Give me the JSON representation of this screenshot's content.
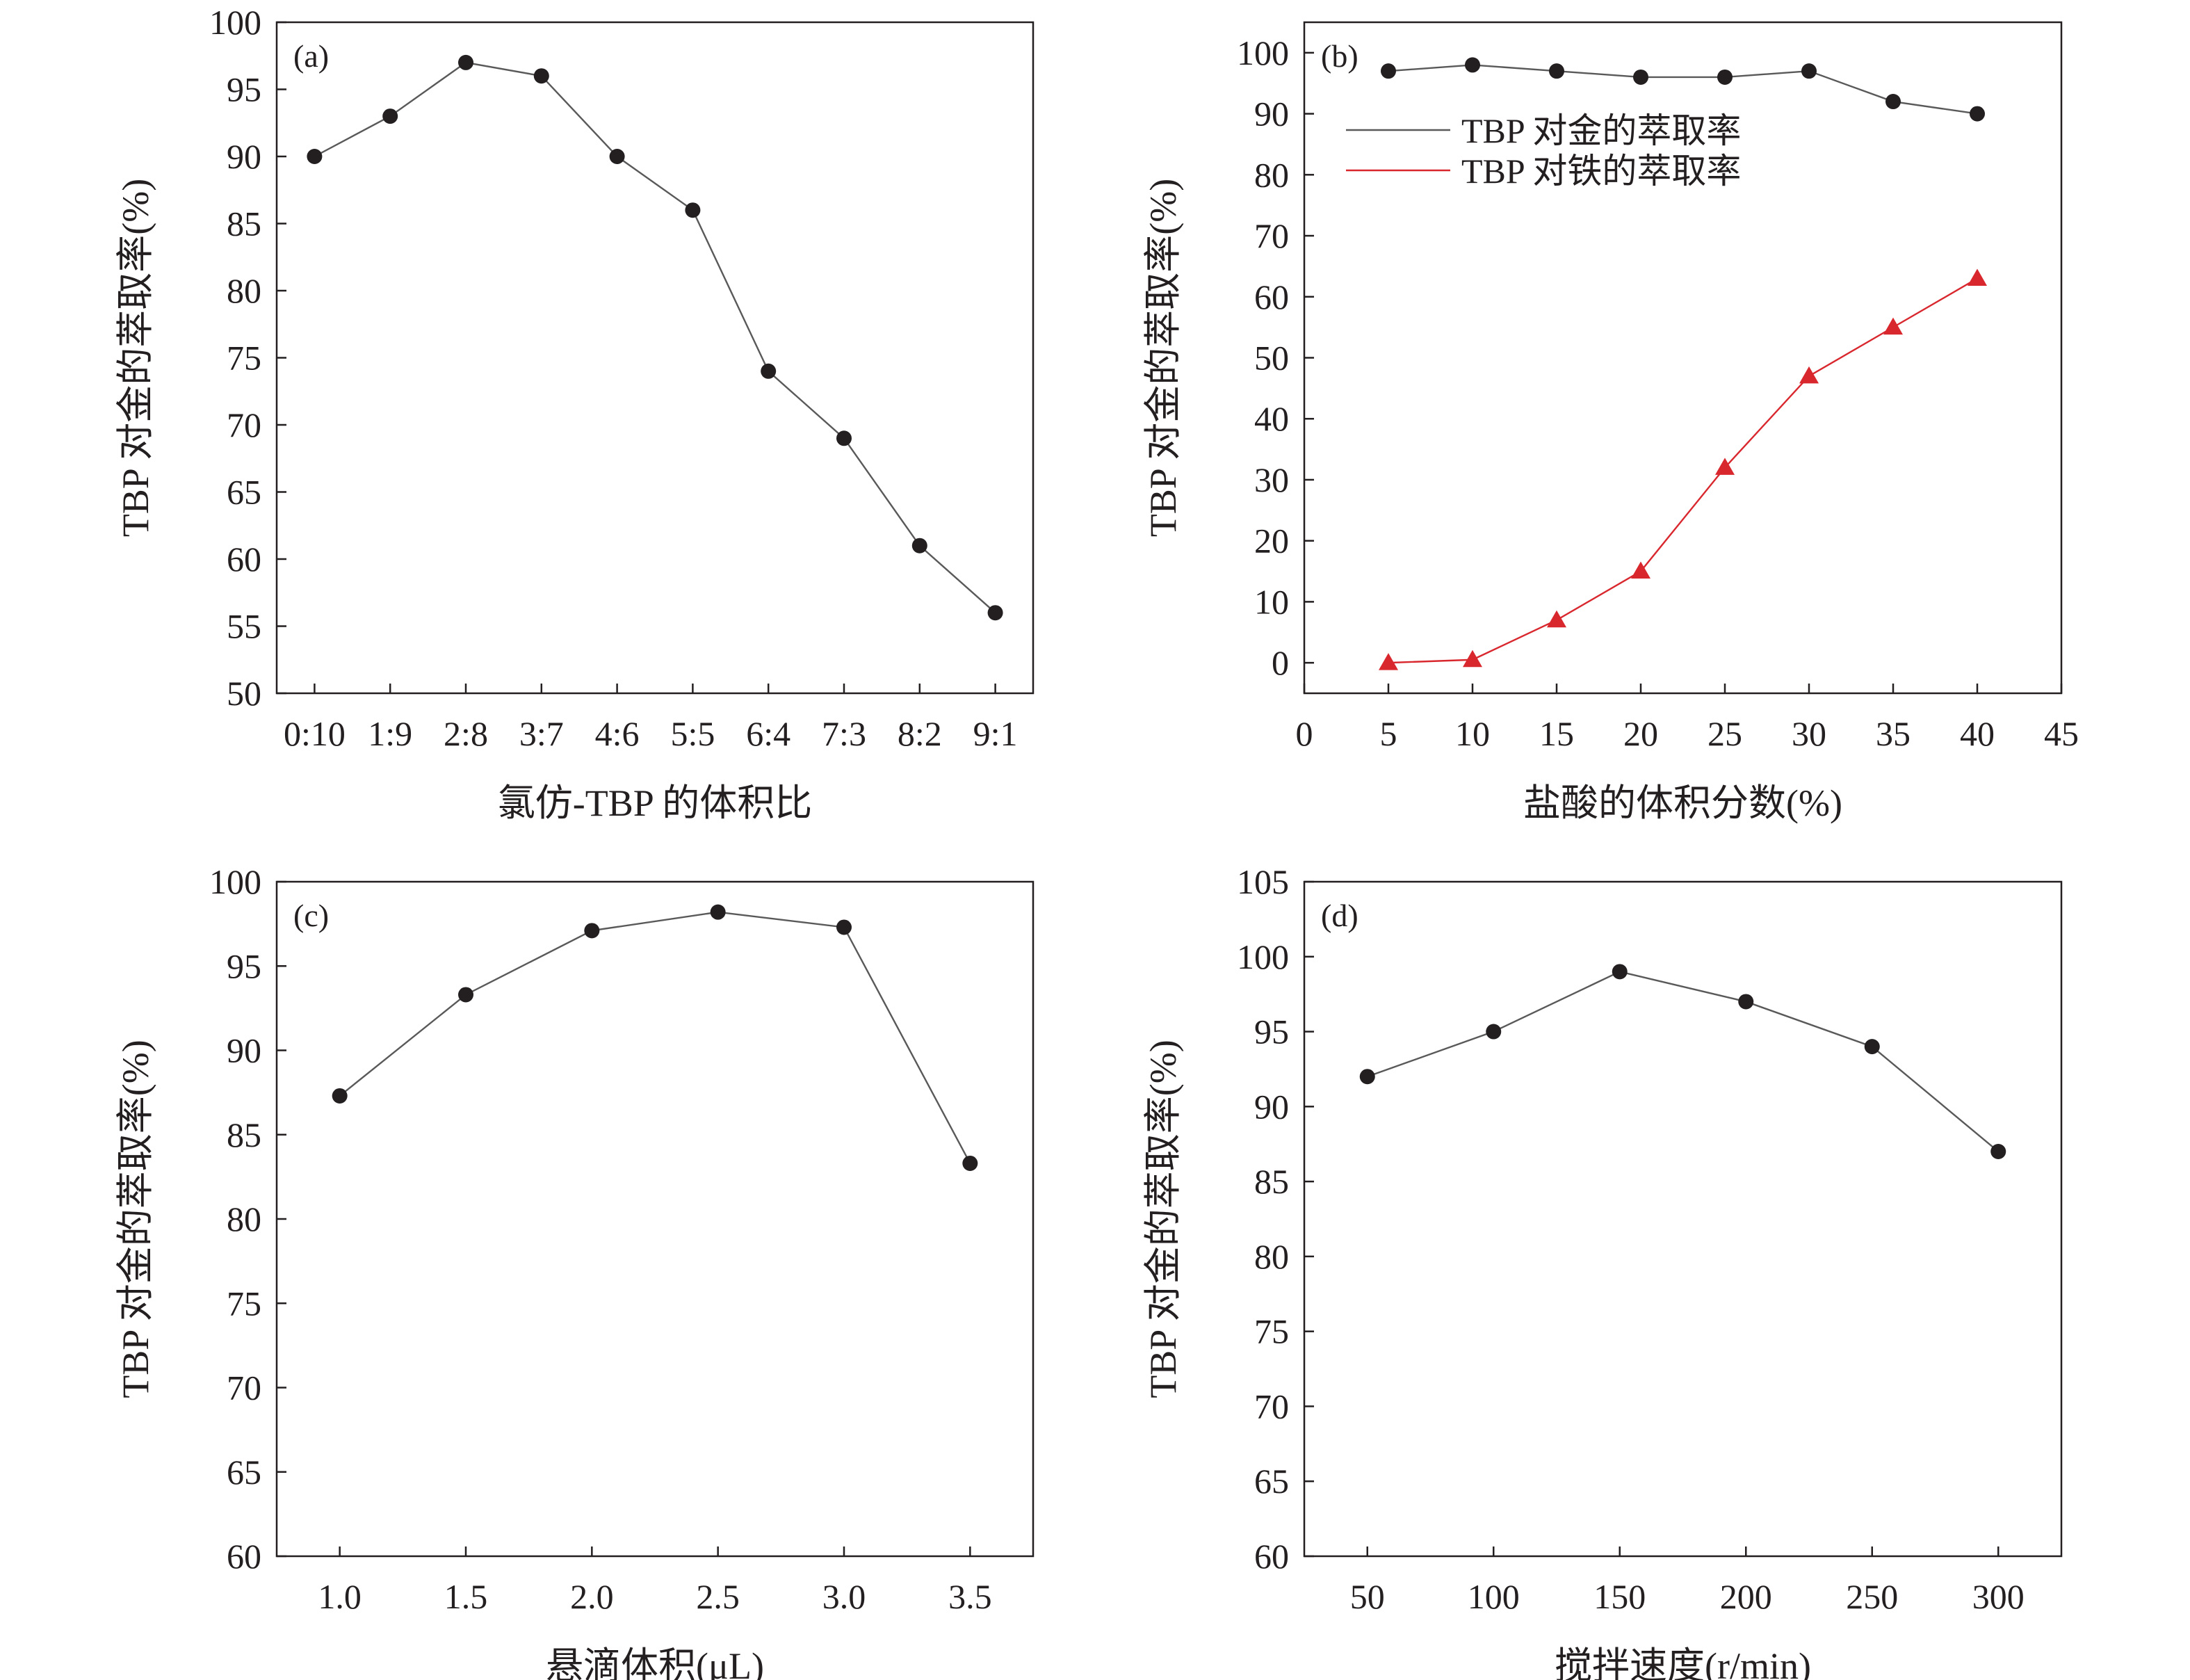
{
  "chart_data": [
    {
      "id": "a",
      "type": "line",
      "panel_label": "(a)",
      "xlabel": "氯仿-TBP 的体积比",
      "ylabel": "TBP 对金的萃取率(%)",
      "categories": [
        "0:10",
        "1:9",
        "2:8",
        "3:7",
        "4:6",
        "5:5",
        "6:4",
        "7:3",
        "8:2",
        "9:1"
      ],
      "series": [
        {
          "values": [
            90,
            93,
            97,
            96,
            90,
            86,
            74,
            69,
            61,
            56
          ],
          "color": "#231f20",
          "marker": "circle"
        }
      ],
      "ylim": [
        50,
        100
      ],
      "yticks": [
        50,
        55,
        60,
        65,
        70,
        75,
        80,
        85,
        90,
        95,
        100
      ],
      "grid": false
    },
    {
      "id": "b",
      "type": "line",
      "panel_label": "(b)",
      "xlabel": "盐酸的体积分数(%)",
      "ylabel": "TBP 对金的萃取率(%)",
      "x": [
        5,
        10,
        15,
        20,
        25,
        30,
        35,
        40
      ],
      "series": [
        {
          "name": "TBP 对金的萃取率",
          "values": [
            97,
            98,
            97,
            96,
            96,
            97,
            92,
            90
          ],
          "color": "#231f20",
          "marker": "circle"
        },
        {
          "name": "TBP 对铁的萃取率",
          "values": [
            0,
            0.5,
            7,
            15,
            32,
            47,
            55,
            63
          ],
          "color": "#d9272e",
          "marker": "triangle"
        }
      ],
      "xlim": [
        0,
        45
      ],
      "xticks": [
        0,
        5,
        10,
        15,
        20,
        25,
        30,
        35,
        40,
        45
      ],
      "ylim": [
        -5,
        105
      ],
      "yticks": [
        0,
        10,
        20,
        30,
        40,
        50,
        60,
        70,
        80,
        90,
        100
      ],
      "legend": "top-left",
      "grid": false
    },
    {
      "id": "c",
      "type": "line",
      "panel_label": "(c)",
      "xlabel": "悬滴体积(μL)",
      "ylabel": "TBP 对金的萃取率(%)",
      "x": [
        1.0,
        1.5,
        2.0,
        2.5,
        3.0,
        3.5
      ],
      "series": [
        {
          "values": [
            87.3,
            93.3,
            97.1,
            98.2,
            97.3,
            83.3
          ],
          "color": "#231f20",
          "marker": "circle"
        }
      ],
      "xlim": [
        0.75,
        3.75
      ],
      "xticks": [
        "1.0",
        "1.5",
        "2.0",
        "2.5",
        "3.0",
        "3.5"
      ],
      "ylim": [
        60,
        100
      ],
      "yticks": [
        60,
        65,
        70,
        75,
        80,
        85,
        90,
        95,
        100
      ],
      "grid": false
    },
    {
      "id": "d",
      "type": "line",
      "panel_label": "(d)",
      "xlabel": "搅拌速度(r/min)",
      "ylabel": "TBP 对金的萃取率(%)",
      "x": [
        50,
        100,
        150,
        200,
        250,
        300
      ],
      "series": [
        {
          "values": [
            92,
            95,
            99,
            97,
            94,
            87
          ],
          "color": "#231f20",
          "marker": "circle"
        }
      ],
      "xlim": [
        25,
        325
      ],
      "xticks": [
        50,
        100,
        150,
        200,
        250,
        300
      ],
      "ylim": [
        60,
        105
      ],
      "yticks": [
        60,
        65,
        70,
        75,
        80,
        85,
        90,
        95,
        100,
        105
      ],
      "grid": false
    }
  ]
}
